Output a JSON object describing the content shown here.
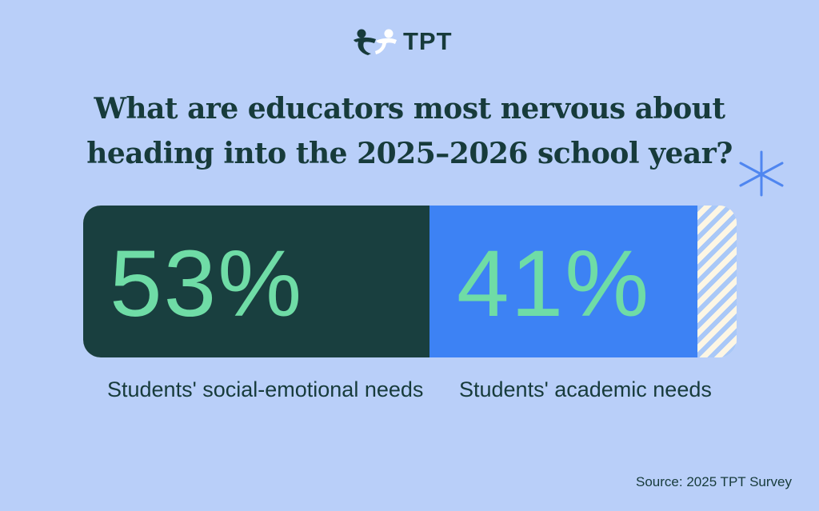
{
  "brand": {
    "logo_text": "TPT",
    "logo_icon": "tpt-people-icon"
  },
  "chart_data": {
    "type": "bar",
    "orientation": "horizontal-stacked",
    "title": "What are educators most nervous about heading into the 2025–2026 school year?",
    "categories": [
      "Students' social-emotional needs",
      "Students' academic needs"
    ],
    "values": [
      53,
      41
    ],
    "value_labels": [
      "53%",
      "41%"
    ],
    "unit": "%",
    "xlim": [
      0,
      100
    ],
    "grid": false,
    "legend": "none",
    "colors": {
      "series_1": "#193f3f",
      "series_2": "#3d82f4",
      "value_text": "#6fdca6",
      "remainder_stripe_a": "#fdf6e4",
      "remainder_stripe_b": "#a9c8f8"
    },
    "source": "Source: 2025 TPT Survey"
  },
  "decor": {
    "sparkle_icon": "sparkle-icon",
    "background": "#b9cff9",
    "text_color": "#173b3b"
  }
}
